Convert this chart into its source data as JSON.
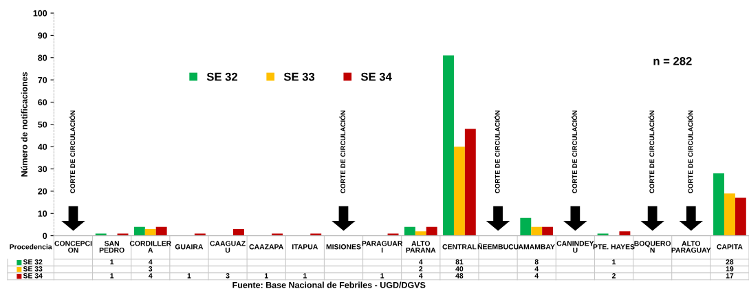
{
  "chart_data": {
    "type": "bar",
    "ylabel": "Número de notificaciones",
    "xlabel": "Procedencia",
    "categories": [
      "CONCEPCI\nON",
      "SAN\nPEDRO",
      "CORDILLER\nA",
      "GUAIRA",
      "CAAGUAZ\nU",
      "CAAZAPA",
      "ITAPUA",
      "MISIONES",
      "PARAGUAR\nI",
      "ALTO\nPARANA",
      "CENTRAL",
      "ÑEEMBUCU",
      "AMAMBAY",
      "CANINDEY\nU",
      "PTE. HAYES",
      "BOQUERO\nN",
      "ALTO\nPARAGUAY",
      "CAPITA"
    ],
    "series": [
      {
        "name": "SE 32",
        "color": "#00b050",
        "values": [
          null,
          1,
          4,
          null,
          null,
          null,
          null,
          null,
          null,
          4,
          81,
          null,
          8,
          null,
          1,
          null,
          null,
          28
        ]
      },
      {
        "name": "SE 33",
        "color": "#ffc000",
        "values": [
          null,
          null,
          3,
          null,
          null,
          null,
          null,
          null,
          null,
          2,
          40,
          null,
          4,
          null,
          null,
          null,
          null,
          19
        ]
      },
      {
        "name": "SE 34",
        "color": "#c00000",
        "values": [
          null,
          1,
          4,
          1,
          3,
          1,
          1,
          null,
          1,
          4,
          48,
          null,
          4,
          null,
          2,
          null,
          null,
          17
        ]
      }
    ],
    "ylim": [
      0,
      100
    ],
    "yticks": [
      0,
      10,
      20,
      30,
      40,
      50,
      60,
      70,
      80,
      90,
      100
    ],
    "data_labels": true,
    "legend": "top left",
    "annotations": [
      "CORTE DE CIRCULACIÓN",
      "CORTE DE CIRCULACIÓN",
      "CORTE DE CIRCULACIÓN",
      "CORTE DE CIRCULACIÓN",
      "CORTE DE CIRCULACIÓN",
      "CORTE DE CIRCULACIÓN",
      "n = 282",
      "Fuente: Base Nacional de Febriles - UGD/DGVS"
    ]
  }
}
